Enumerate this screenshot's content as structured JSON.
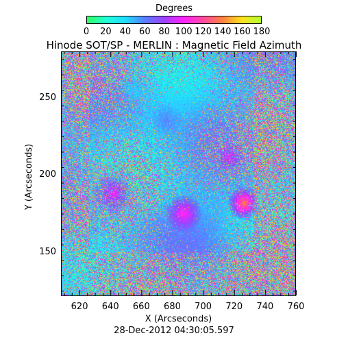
{
  "colorbar": {
    "title": "Degrees",
    "tick_labels": [
      "0",
      "20",
      "40",
      "60",
      "80",
      "100",
      "120",
      "140",
      "160",
      "180"
    ],
    "colors": [
      "#33ff66",
      "#22ffd8",
      "#22dcff",
      "#5a7dff",
      "#a040ff",
      "#ff22ff",
      "#ff4aa0",
      "#ff8040",
      "#ffe020",
      "#b0ff30"
    ]
  },
  "plot": {
    "title": "Hinode SOT/SP - MERLIN : Magnetic Field Azimuth",
    "xlabel": "X (Arcseconds)",
    "ylabel": "Y (Arcseconds)",
    "x_ticks": [
      "620",
      "640",
      "660",
      "680",
      "700",
      "720",
      "740",
      "760"
    ],
    "y_ticks": [
      "150",
      "200",
      "250"
    ],
    "timestamp": "28-Dec-2012 04:30:05.597"
  },
  "chart_data": {
    "type": "heatmap",
    "title": "Hinode SOT/SP - MERLIN : Magnetic Field Azimuth",
    "xlabel": "X (Arcseconds)",
    "ylabel": "Y (Arcseconds)",
    "xlim": [
      608,
      760
    ],
    "ylim": [
      122,
      280
    ],
    "colorbar_range": [
      0,
      180
    ],
    "colorbar_label": "Degrees"
  }
}
